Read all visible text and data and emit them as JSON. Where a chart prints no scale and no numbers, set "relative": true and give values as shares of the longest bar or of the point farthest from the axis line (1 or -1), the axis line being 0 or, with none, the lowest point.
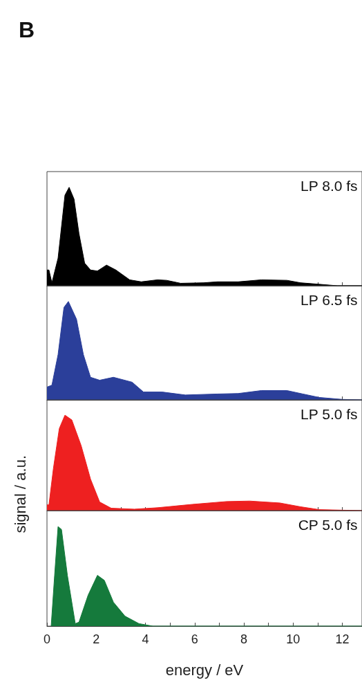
{
  "chart_data": [
    {
      "type": "area",
      "title": "B",
      "relative": true,
      "tick_labels": false,
      "xlim": [
        0,
        12.8
      ],
      "xticks": [
        0,
        {
          "value": 1,
          "label": null
        },
        2,
        {
          "value": 3,
          "label": null
        },
        4,
        {
          "value": 5,
          "label": null
        },
        6,
        {
          "value": 7,
          "label": null
        },
        8,
        {
          "value": 9,
          "label": null
        },
        10,
        {
          "value": 11,
          "label": null
        },
        12
      ],
      "series": [
        {
          "name": "LP 8.0 fs",
          "color": "#000000",
          "x": [
            0,
            0.08,
            0.2,
            0.45,
            0.73,
            0.9,
            1.1,
            1.3,
            1.53,
            1.77,
            2.05,
            2.42,
            2.8,
            3.36,
            3.83,
            4.49,
            4.86,
            5.43,
            6.37,
            6.93,
            7.77,
            8.71,
            9.75,
            10.3,
            11.06,
            11.8,
            12.8
          ],
          "values": [
            0.16,
            0.16,
            0.03,
            0.28,
            0.92,
            1,
            0.88,
            0.53,
            0.23,
            0.16,
            0.15,
            0.21,
            0.16,
            0.06,
            0.04,
            0.06,
            0.055,
            0.025,
            0.03,
            0.04,
            0.04,
            0.06,
            0.055,
            0.03,
            0.015,
            0,
            0
          ]
        }
      ]
    },
    {
      "type": "area",
      "relative": true,
      "tick_labels": false,
      "xlim": [
        0,
        12.8
      ],
      "xticks": [
        0,
        {
          "value": 1,
          "label": null
        },
        2,
        {
          "value": 3,
          "label": null
        },
        4,
        {
          "value": 5,
          "label": null
        },
        6,
        {
          "value": 7,
          "label": null
        },
        8,
        {
          "value": 9,
          "label": null
        },
        10,
        {
          "value": 11,
          "label": null
        },
        12
      ],
      "series": [
        {
          "name": "LP 6.5 fs",
          "color": "#2b3f9a",
          "x": [
            0,
            0.2,
            0.45,
            0.69,
            0.87,
            1.2,
            1.48,
            1.77,
            2.14,
            2.7,
            3.46,
            3.92,
            4.68,
            5.62,
            6.93,
            7.77,
            8.71,
            9.75,
            10.4,
            11.06,
            12,
            12.8
          ],
          "values": [
            0.13,
            0.15,
            0.46,
            0.94,
            1,
            0.82,
            0.46,
            0.23,
            0.2,
            0.23,
            0.18,
            0.08,
            0.08,
            0.05,
            0.06,
            0.065,
            0.095,
            0.095,
            0.06,
            0.025,
            0.005,
            0
          ]
        }
      ]
    },
    {
      "type": "area",
      "relative": true,
      "tick_labels": false,
      "ylabel": "signal / a.u.",
      "xlim": [
        0,
        12.8
      ],
      "xticks": [
        0,
        {
          "value": 1,
          "label": null
        },
        2,
        {
          "value": 3,
          "label": null
        },
        4,
        {
          "value": 5,
          "label": null
        },
        6,
        {
          "value": 7,
          "label": null
        },
        8,
        {
          "value": 9,
          "label": null
        },
        10,
        {
          "value": 11,
          "label": null
        },
        12
      ],
      "series": [
        {
          "name": "LP 5.0 fs",
          "color": "#ee2020",
          "x": [
            0,
            0.08,
            0.26,
            0.5,
            0.73,
            1.01,
            1.39,
            1.77,
            2.14,
            2.61,
            3.55,
            4.49,
            5.9,
            7.3,
            8.24,
            9.46,
            10.3,
            11.06,
            12.8
          ],
          "values": [
            0.06,
            0.06,
            0.44,
            0.86,
            1,
            0.95,
            0.68,
            0.33,
            0.09,
            0.025,
            0.015,
            0.03,
            0.065,
            0.095,
            0.1,
            0.08,
            0.04,
            0.01,
            0
          ]
        }
      ]
    },
    {
      "type": "area",
      "relative": true,
      "tick_labels": "x",
      "xlabel": "energy / eV",
      "xlim": [
        0,
        12.8
      ],
      "xticks": [
        0,
        {
          "value": 1,
          "label": null
        },
        2,
        {
          "value": 3,
          "label": null
        },
        4,
        {
          "value": 5,
          "label": null
        },
        6,
        {
          "value": 7,
          "label": null
        },
        8,
        {
          "value": 9,
          "label": null
        },
        10,
        {
          "value": 11,
          "label": null
        },
        12
      ],
      "series": [
        {
          "name": "CP 5.0 fs",
          "color": "#157a3c",
          "x": [
            0.17,
            0.31,
            0.45,
            0.59,
            0.83,
            1.15,
            1.3,
            1.67,
            2.05,
            2.33,
            2.7,
            3.17,
            3.74,
            4.3,
            12.8
          ],
          "values": [
            0,
            0.51,
            1,
            0.97,
            0.51,
            0.025,
            0.04,
            0.31,
            0.51,
            0.46,
            0.24,
            0.1,
            0.025,
            0,
            0
          ]
        }
      ]
    }
  ]
}
